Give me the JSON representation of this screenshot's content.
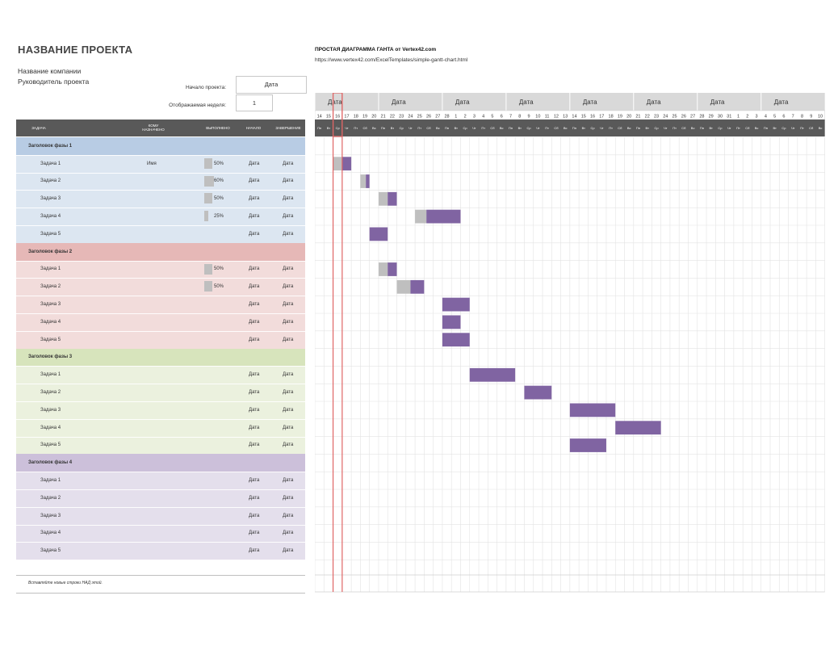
{
  "project": {
    "title": "НАЗВАНИЕ ПРОЕКТА",
    "company": "Название компании",
    "manager": "Руководитель проекта",
    "start_label": "Начало проекта:",
    "start_value": "Дата",
    "week_label": "Отображаемая неделя:",
    "week_value": "1"
  },
  "gantt": {
    "title": "ПРОСТАЯ ДИАГРАММА ГАНТА от Vertex42.com",
    "url": "https://www.vertex42.com/ExcelTemplates/simple-gantt-chart.html",
    "week_labels": [
      "Дата",
      "Дата",
      "Дата",
      "Дата",
      "Дата",
      "Дата",
      "Дата",
      "Дата"
    ],
    "day_numbers": [
      "14",
      "15",
      "16",
      "17",
      "18",
      "19",
      "20",
      "21",
      "22",
      "23",
      "24",
      "25",
      "26",
      "27",
      "28",
      "1",
      "2",
      "3",
      "4",
      "5",
      "6",
      "7",
      "8",
      "9",
      "10",
      "11",
      "12",
      "13",
      "14",
      "15",
      "16",
      "17",
      "18",
      "19",
      "20",
      "21",
      "22",
      "23",
      "24",
      "25",
      "26",
      "27",
      "28",
      "29",
      "30",
      "31",
      "1",
      "2",
      "3",
      "4",
      "5",
      "6",
      "7",
      "8",
      "9",
      "10"
    ],
    "weekday_abbr": [
      "Пн",
      "Вт",
      "Ср",
      "Чт",
      "Пт",
      "Сб",
      "Вс"
    ],
    "colors": {
      "bar": "#8064a2",
      "done": "#bfbfbf",
      "today": "#e06666",
      "header": "#595959",
      "weekhdr": "#d9d9d9"
    }
  },
  "table": {
    "headers": {
      "task": "ЗАДАЧА",
      "assigned": "КОМУ НАЗНАЧЕНО",
      "progress": "ВЫПОЛНЕНО",
      "start": "НАЧАЛО",
      "end": "ЗАВЕРШЕНИЕ"
    },
    "insert_note": "Вставляйте новые строки НАД этой."
  },
  "phases": [
    {
      "title": "Заголовок фазы 1",
      "color": "#b8cce4",
      "light": "#dce6f1",
      "tasks": [
        {
          "name": "Задача 1",
          "assigned": "Имя",
          "progress": 50,
          "progress_label": "50%",
          "start": "Дата",
          "end": "Дата",
          "bar": [
            2,
            4
          ]
        },
        {
          "name": "Задача 2",
          "assigned": "",
          "progress": 60,
          "progress_label": "60%",
          "start": "Дата",
          "end": "Дата",
          "bar": [
            5,
            6
          ]
        },
        {
          "name": "Задача 3",
          "assigned": "",
          "progress": 50,
          "progress_label": "50%",
          "start": "Дата",
          "end": "Дата",
          "bar": [
            7,
            9
          ]
        },
        {
          "name": "Задача 4",
          "assigned": "",
          "progress": 25,
          "progress_label": "25%",
          "start": "Дата",
          "end": "Дата",
          "bar": [
            11,
            16
          ]
        },
        {
          "name": "Задача 5",
          "assigned": "",
          "progress": null,
          "progress_label": "",
          "start": "Дата",
          "end": "Дата",
          "bar": [
            6,
            8
          ]
        }
      ]
    },
    {
      "title": "Заголовок фазы 2",
      "color": "#e6b8b7",
      "light": "#f2dcdb",
      "tasks": [
        {
          "name": "Задача 1",
          "assigned": "",
          "progress": 50,
          "progress_label": "50%",
          "start": "Дата",
          "end": "Дата",
          "bar": [
            7,
            9
          ]
        },
        {
          "name": "Задача 2",
          "assigned": "",
          "progress": 50,
          "progress_label": "50%",
          "start": "Дата",
          "end": "Дата",
          "bar": [
            9,
            12
          ]
        },
        {
          "name": "Задача 3",
          "assigned": "",
          "progress": null,
          "progress_label": "",
          "start": "Дата",
          "end": "Дата",
          "bar": [
            14,
            17
          ]
        },
        {
          "name": "Задача 4",
          "assigned": "",
          "progress": null,
          "progress_label": "",
          "start": "Дата",
          "end": "Дата",
          "bar": [
            14,
            16
          ]
        },
        {
          "name": "Задача 5",
          "assigned": "",
          "progress": null,
          "progress_label": "",
          "start": "Дата",
          "end": "Дата",
          "bar": [
            14,
            17
          ]
        }
      ]
    },
    {
      "title": "Заголовок фазы 3",
      "color": "#d7e4bc",
      "light": "#ebf1de",
      "tasks": [
        {
          "name": "Задача 1",
          "assigned": "",
          "progress": null,
          "progress_label": "",
          "start": "Дата",
          "end": "Дата",
          "bar": [
            17,
            22
          ]
        },
        {
          "name": "Задача 2",
          "assigned": "",
          "progress": null,
          "progress_label": "",
          "start": "Дата",
          "end": "Дата",
          "bar": [
            23,
            26
          ]
        },
        {
          "name": "Задача 3",
          "assigned": "",
          "progress": null,
          "progress_label": "",
          "start": "Дата",
          "end": "Дата",
          "bar": [
            28,
            33
          ]
        },
        {
          "name": "Задача 4",
          "assigned": "",
          "progress": null,
          "progress_label": "",
          "start": "Дата",
          "end": "Дата",
          "bar": [
            33,
            38
          ]
        },
        {
          "name": "Задача 5",
          "assigned": "",
          "progress": null,
          "progress_label": "",
          "start": "Дата",
          "end": "Дата",
          "bar": [
            28,
            32
          ]
        }
      ]
    },
    {
      "title": "Заголовок фазы 4",
      "color": "#ccc0da",
      "light": "#e4dfec",
      "tasks": [
        {
          "name": "Задача 1",
          "assigned": "",
          "progress": null,
          "progress_label": "",
          "start": "Дата",
          "end": "Дата",
          "bar": null
        },
        {
          "name": "Задача 2",
          "assigned": "",
          "progress": null,
          "progress_label": "",
          "start": "Дата",
          "end": "Дата",
          "bar": null
        },
        {
          "name": "Задача 3",
          "assigned": "",
          "progress": null,
          "progress_label": "",
          "start": "Дата",
          "end": "Дата",
          "bar": null
        },
        {
          "name": "Задача 4",
          "assigned": "",
          "progress": null,
          "progress_label": "",
          "start": "Дата",
          "end": "Дата",
          "bar": null
        },
        {
          "name": "Задача 5",
          "assigned": "",
          "progress": null,
          "progress_label": "",
          "start": "Дата",
          "end": "Дата",
          "bar": null
        }
      ]
    }
  ]
}
